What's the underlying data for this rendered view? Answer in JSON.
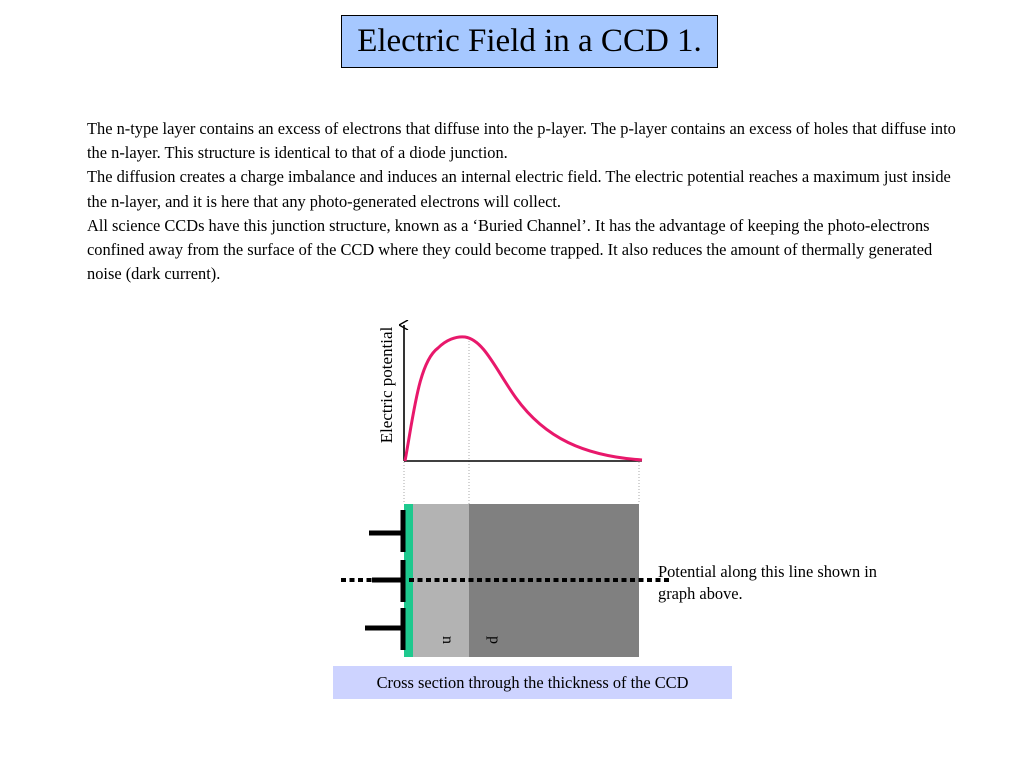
{
  "slide": {
    "title": "Electric Field in a CCD 1.",
    "paragraphs": [
      "The n-type layer contains an excess of electrons that diffuse into the p-layer. The p-layer contains an excess of holes that diffuse into the n-layer. This structure is identical to that of a diode junction.",
      "The diffusion creates a charge imbalance and induces an internal electric field. The electric potential reaches a maximum just inside the n-layer, and it is here that any photo-generated electrons will collect.",
      "All science CCDs have this junction structure, known as a ‘Buried Channel’. It has the advantage of keeping the photo-electrons confined away from the surface of the CCD where they could become trapped. It also reduces the amount of thermally generated noise (dark current)."
    ]
  },
  "graph": {
    "ylabel": "Electric potential"
  },
  "cross_section": {
    "n_label": "n",
    "p_label": "p",
    "note": "Potential along this line shown in graph above.",
    "caption": "Cross section through the thickness of the CCD"
  },
  "colors": {
    "title_bg": "#a6c8ff",
    "caption_bg": "#cdd3ff",
    "curve": "#e8186b",
    "n_layer": "#b3b3b3",
    "p_layer": "#808080",
    "surface": "#1ec98e"
  }
}
